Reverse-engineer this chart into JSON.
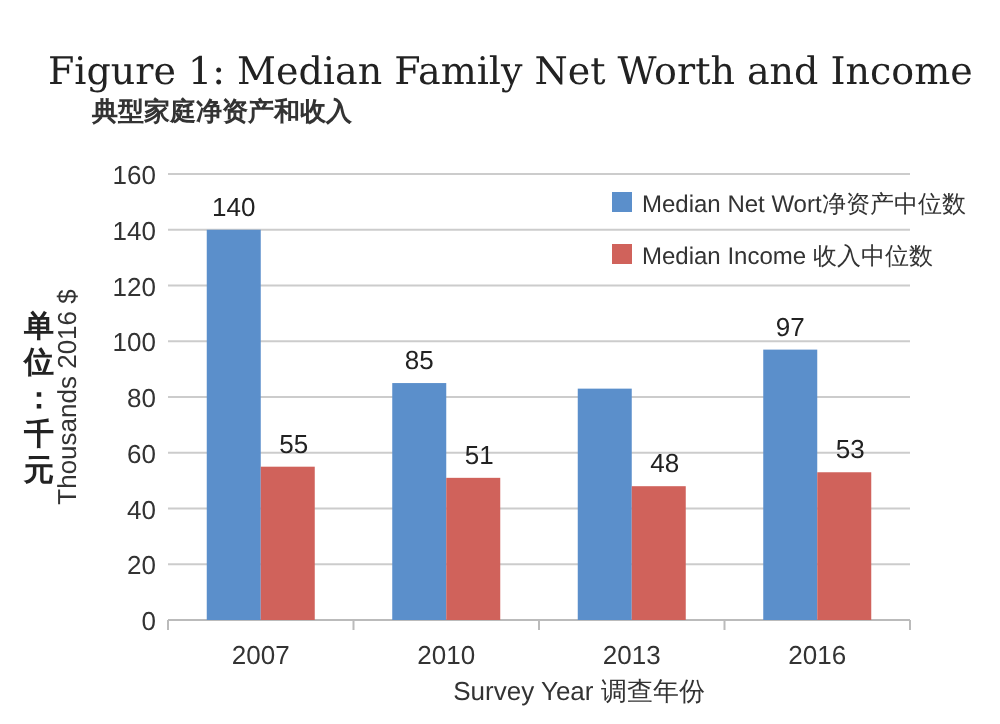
{
  "chart_data": {
    "type": "bar",
    "title": "Figure 1: Median Family Net Worth and Income",
    "subtitle": "典型家庭净资产和收入",
    "xlabel": "Survey Year 调查年份",
    "ylabel": "Thousands 2016 $",
    "annotations": [
      "单位：千元"
    ],
    "categories": [
      "2007",
      "2010",
      "2013",
      "2016"
    ],
    "series": [
      {
        "name": "Median Net Wort净资产中位数",
        "color": "#5b8fcb",
        "values": [
          140,
          85,
          83,
          97
        ],
        "value_labels": [
          "140",
          "85",
          null,
          "97"
        ]
      },
      {
        "name": "Median Income  收入中位数",
        "color": "#d0625b",
        "values": [
          55,
          51,
          48,
          53
        ],
        "value_labels": [
          "55",
          "51",
          "48",
          "53"
        ]
      }
    ],
    "ylim": [
      0,
      160
    ],
    "yticks": [
      0,
      20,
      40,
      60,
      80,
      100,
      120,
      140,
      160
    ],
    "grid": "y",
    "legend": "top right"
  }
}
